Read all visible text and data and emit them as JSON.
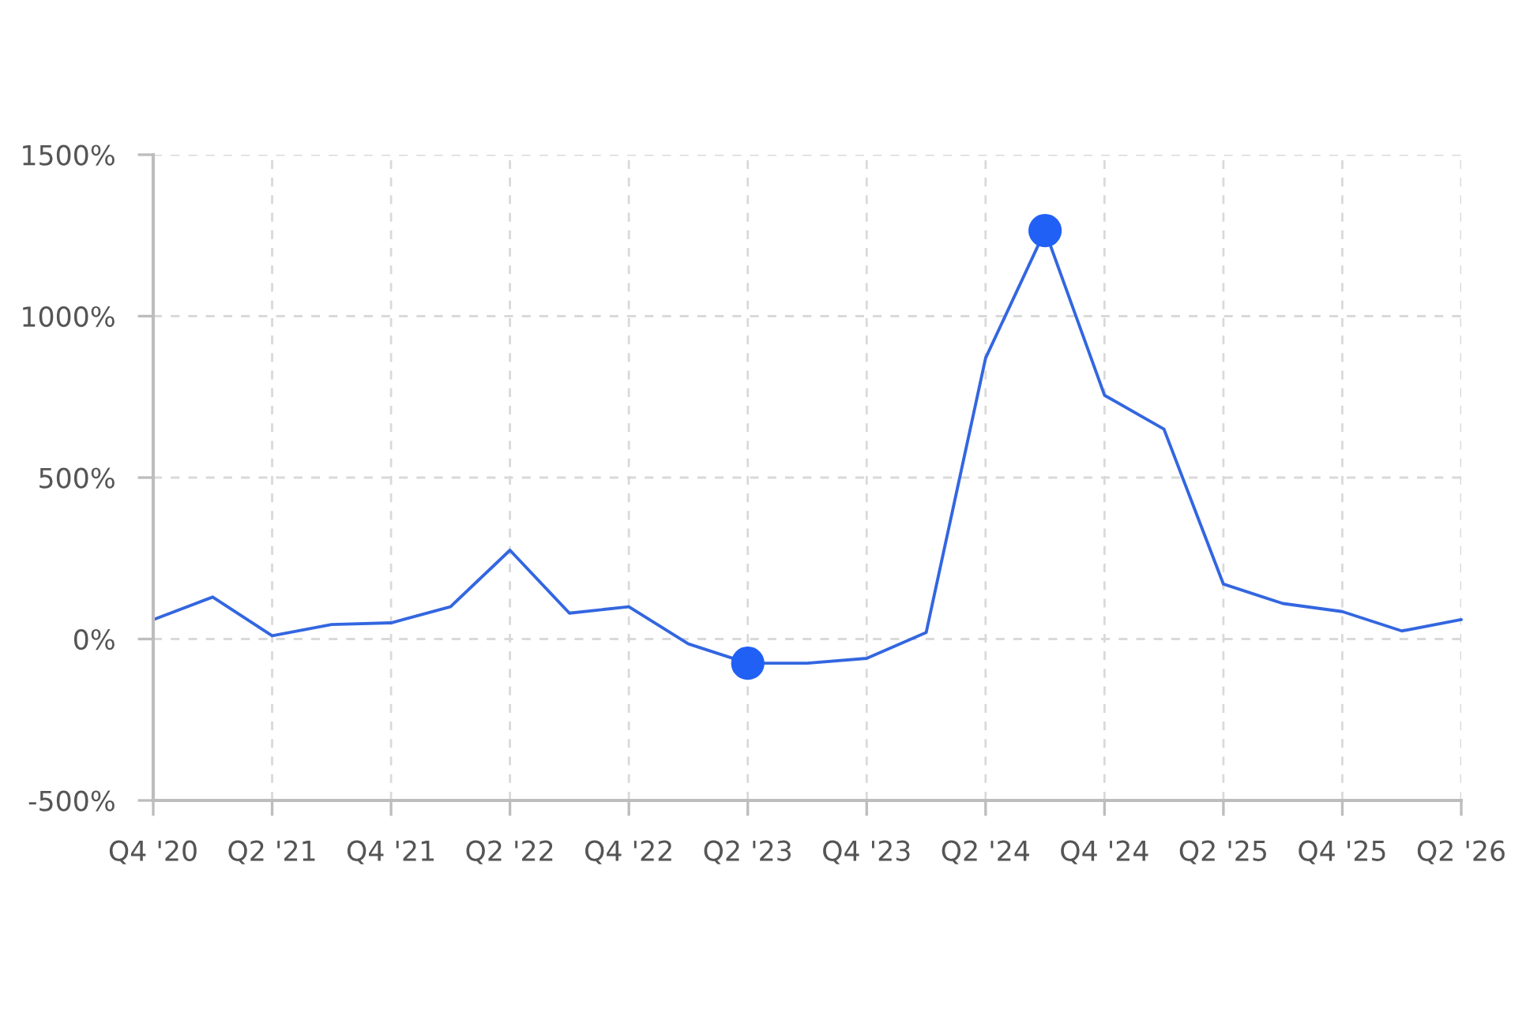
{
  "chart_data": {
    "type": "line",
    "categories": [
      "Q4 '20",
      null,
      "Q2 '21",
      null,
      "Q4 '21",
      null,
      "Q2 '22",
      null,
      "Q4 '22",
      null,
      "Q2 '23",
      null,
      "Q4 '23",
      null,
      "Q2 '24",
      null,
      "Q4 '24",
      null,
      "Q2 '25",
      null,
      "Q4 '25",
      null,
      "Q2 '26"
    ],
    "ylim": [
      -500,
      1500
    ],
    "yticks": [
      {
        "value": -500,
        "label": "-500%"
      },
      {
        "value": 0,
        "label": "0%"
      },
      {
        "value": 500,
        "label": "500%"
      },
      {
        "value": 1000,
        "label": "1000%"
      },
      {
        "value": 1500,
        "label": "1500%"
      }
    ],
    "grid": true,
    "series": [
      {
        "color": "#3366e0",
        "marker": "none",
        "line_style": "solid",
        "values": [
          60,
          130,
          10,
          45,
          50,
          100,
          275,
          80,
          100,
          -15,
          -75,
          -75,
          -60,
          20,
          870,
          1265,
          755,
          650,
          170,
          110,
          85,
          25,
          60
        ]
      },
      {
        "type": "scatter",
        "color": "#2160f5",
        "marker": "circle",
        "values": [
          null,
          null,
          null,
          null,
          null,
          null,
          null,
          null,
          null,
          null,
          -75,
          null,
          null,
          null,
          null,
          1265,
          null,
          null,
          null,
          null,
          null,
          null,
          null
        ]
      }
    ]
  }
}
